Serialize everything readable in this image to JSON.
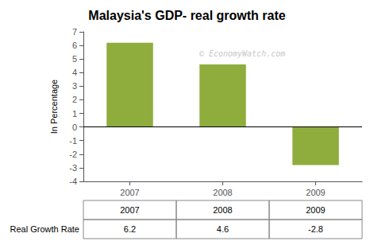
{
  "chart_data": {
    "type": "bar",
    "title": "Malaysia's GDP- real growth rate",
    "categories": [
      "2007",
      "2008",
      "2009"
    ],
    "values": [
      6.2,
      4.6,
      -2.8
    ],
    "color": "#8fad3c",
    "ylim": [
      -4,
      7
    ],
    "yticks": [
      -4,
      -3,
      -2,
      -1,
      0,
      1,
      2,
      3,
      4,
      5,
      6,
      7
    ],
    "y_label": "In Percentage",
    "grid": false,
    "annotations": [
      {
        "text": "© EconomyWatch.com"
      }
    ],
    "table": {
      "label": "Real Growth Rate",
      "values": [
        6.2,
        4.6,
        -2.8
      ]
    }
  }
}
